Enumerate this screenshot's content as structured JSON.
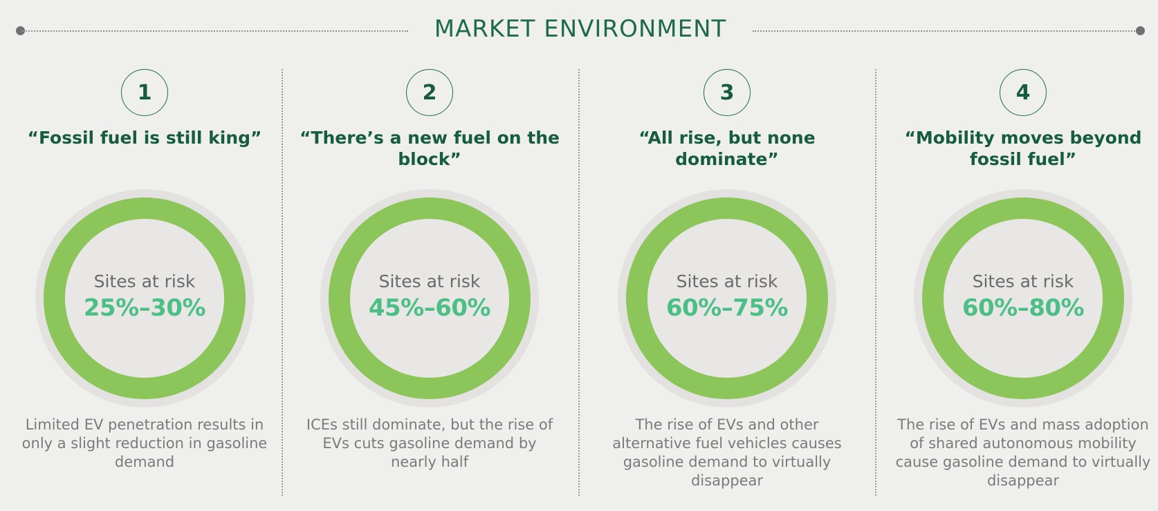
{
  "header": {
    "title": "MARKET ENVIRONMENT"
  },
  "colors": {
    "title_green": "#165c3f",
    "ring_green": "#8cc65b",
    "value_green": "#4cbf86",
    "background": "#efefee"
  },
  "scenarios": [
    {
      "number": "1",
      "title": "“Fossil fuel is still king”",
      "risk_label": "Sites at risk",
      "risk_value": "25%–30%",
      "description": "Limited EV penetration results in only a slight reduction in gasoline demand"
    },
    {
      "number": "2",
      "title": "“There’s a new fuel on the block”",
      "risk_label": "Sites at risk",
      "risk_value": "45%–60%",
      "description": "ICEs still dominate, but the rise of EVs cuts gasoline demand by nearly half"
    },
    {
      "number": "3",
      "title": "“All rise, but none dominate”",
      "risk_label": "Sites at risk",
      "risk_value": "60%–75%",
      "description": "The rise of EVs and other alternative fuel vehicles causes gasoline demand to virtually disappear"
    },
    {
      "number": "4",
      "title": "“Mobility moves beyond fossil fuel”",
      "risk_label": "Sites at risk",
      "risk_value": "60%–80%",
      "description": "The rise of EVs and mass adoption of shared autonomous mobility cause gasoline demand to virtually disappear"
    }
  ]
}
